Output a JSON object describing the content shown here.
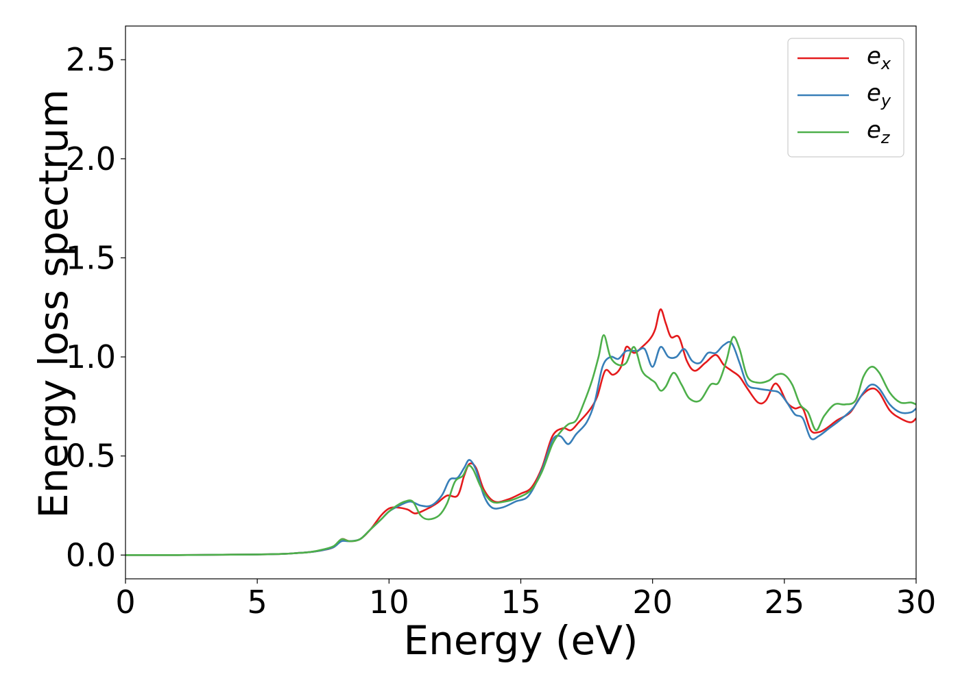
{
  "chart_data": {
    "type": "line",
    "title": "",
    "xlabel": "Energy (eV)",
    "ylabel": "Energy loss spectrum",
    "xlim": [
      0,
      30
    ],
    "ylim": [
      -0.12,
      2.67
    ],
    "xticks": [
      0,
      5,
      10,
      15,
      20,
      25,
      30
    ],
    "xtick_labels": [
      "0",
      "5",
      "10",
      "15",
      "20",
      "25",
      "30"
    ],
    "yticks": [
      0.0,
      0.5,
      1.0,
      1.5,
      2.0,
      2.5
    ],
    "ytick_labels": [
      "0.0",
      "0.5",
      "1.0",
      "1.5",
      "2.0",
      "2.5"
    ],
    "grid": false,
    "legend_position": "top-right",
    "series": [
      {
        "name": "e_x",
        "label_base": "e",
        "label_sub": "x",
        "color": "#e41a1c",
        "x": [
          0,
          2,
          4,
          5,
          6,
          6.5,
          7,
          7.5,
          7.9,
          8.2,
          8.5,
          8.9,
          9.3,
          9.7,
          10.0,
          10.3,
          10.7,
          11.0,
          11.4,
          11.8,
          12.2,
          12.6,
          12.85,
          13.05,
          13.3,
          13.6,
          14.0,
          14.5,
          15.0,
          15.4,
          15.8,
          16.2,
          16.6,
          16.9,
          17.2,
          17.6,
          17.9,
          18.2,
          18.5,
          18.8,
          19.0,
          19.3,
          19.6,
          19.9,
          20.1,
          20.3,
          20.5,
          20.7,
          21.0,
          21.3,
          21.6,
          22.0,
          22.4,
          22.7,
          23.0,
          23.3,
          23.6,
          24.0,
          24.3,
          24.6,
          24.8,
          25.1,
          25.4,
          25.7,
          26.0,
          26.3,
          26.6,
          27.0,
          27.5,
          27.9,
          28.3,
          28.6,
          29.0,
          29.4,
          29.8,
          30.0
        ],
        "y": [
          0.0,
          0.0,
          0.002,
          0.003,
          0.006,
          0.01,
          0.015,
          0.025,
          0.04,
          0.08,
          0.07,
          0.08,
          0.13,
          0.2,
          0.235,
          0.24,
          0.23,
          0.21,
          0.23,
          0.26,
          0.3,
          0.3,
          0.4,
          0.46,
          0.44,
          0.33,
          0.27,
          0.28,
          0.31,
          0.34,
          0.44,
          0.6,
          0.64,
          0.63,
          0.67,
          0.73,
          0.8,
          0.93,
          0.91,
          0.95,
          1.05,
          1.02,
          1.05,
          1.09,
          1.14,
          1.24,
          1.17,
          1.1,
          1.1,
          0.98,
          0.93,
          0.97,
          1.01,
          0.96,
          0.93,
          0.9,
          0.84,
          0.77,
          0.78,
          0.86,
          0.85,
          0.77,
          0.74,
          0.74,
          0.63,
          0.62,
          0.64,
          0.68,
          0.72,
          0.8,
          0.84,
          0.82,
          0.73,
          0.69,
          0.67,
          0.69
        ]
      },
      {
        "name": "e_y",
        "label_base": "e",
        "label_sub": "y",
        "color": "#377eb8",
        "x": [
          0,
          2,
          4,
          5,
          6,
          6.5,
          7,
          7.5,
          7.9,
          8.2,
          8.5,
          8.9,
          9.3,
          9.7,
          10.0,
          10.4,
          10.8,
          11.2,
          11.6,
          12.0,
          12.3,
          12.6,
          12.85,
          13.05,
          13.3,
          13.6,
          13.9,
          14.3,
          14.8,
          15.3,
          15.8,
          16.2,
          16.5,
          16.8,
          17.1,
          17.5,
          17.8,
          18.1,
          18.4,
          18.7,
          19.0,
          19.4,
          19.7,
          20.0,
          20.3,
          20.6,
          20.9,
          21.2,
          21.5,
          21.8,
          22.1,
          22.4,
          22.7,
          23.0,
          23.3,
          23.6,
          24.0,
          24.5,
          24.8,
          25.1,
          25.4,
          25.7,
          26.0,
          26.3,
          26.7,
          27.1,
          27.6,
          28.0,
          28.3,
          28.6,
          29.0,
          29.4,
          29.8,
          30.0
        ],
        "y": [
          0.0,
          0.0,
          0.002,
          0.003,
          0.006,
          0.01,
          0.015,
          0.025,
          0.04,
          0.07,
          0.07,
          0.08,
          0.13,
          0.18,
          0.22,
          0.25,
          0.27,
          0.25,
          0.25,
          0.3,
          0.38,
          0.39,
          0.44,
          0.48,
          0.43,
          0.3,
          0.24,
          0.24,
          0.27,
          0.3,
          0.43,
          0.58,
          0.6,
          0.56,
          0.61,
          0.67,
          0.77,
          0.95,
          1.0,
          0.99,
          1.03,
          1.03,
          1.04,
          0.95,
          1.05,
          1.0,
          1.0,
          1.04,
          0.98,
          0.97,
          1.02,
          1.02,
          1.06,
          1.07,
          0.97,
          0.86,
          0.84,
          0.83,
          0.82,
          0.77,
          0.71,
          0.69,
          0.59,
          0.6,
          0.64,
          0.68,
          0.74,
          0.82,
          0.86,
          0.84,
          0.76,
          0.72,
          0.72,
          0.74
        ]
      },
      {
        "name": "e_z",
        "label_base": "e",
        "label_sub": "z",
        "color": "#4daf4a",
        "x": [
          0,
          2,
          4,
          5,
          6,
          6.5,
          7,
          7.5,
          7.9,
          8.2,
          8.5,
          8.9,
          9.3,
          9.7,
          10.0,
          10.3,
          10.6,
          10.9,
          11.2,
          11.5,
          11.9,
          12.2,
          12.5,
          12.8,
          13.0,
          13.2,
          13.5,
          13.9,
          14.4,
          14.9,
          15.4,
          15.8,
          16.2,
          16.5,
          16.8,
          17.1,
          17.4,
          17.7,
          17.95,
          18.15,
          18.4,
          18.7,
          19.0,
          19.3,
          19.6,
          19.9,
          20.1,
          20.3,
          20.5,
          20.8,
          21.1,
          21.4,
          21.8,
          22.2,
          22.5,
          22.8,
          23.05,
          23.3,
          23.6,
          24.0,
          24.4,
          24.7,
          25.0,
          25.3,
          25.6,
          25.9,
          26.2,
          26.5,
          26.9,
          27.3,
          27.7,
          28.0,
          28.3,
          28.6,
          29.0,
          29.4,
          29.8,
          30.0
        ],
        "y": [
          0.0,
          0.0,
          0.002,
          0.003,
          0.006,
          0.01,
          0.015,
          0.028,
          0.045,
          0.08,
          0.07,
          0.08,
          0.13,
          0.18,
          0.22,
          0.25,
          0.27,
          0.27,
          0.2,
          0.18,
          0.2,
          0.26,
          0.37,
          0.4,
          0.45,
          0.43,
          0.34,
          0.27,
          0.27,
          0.29,
          0.33,
          0.42,
          0.56,
          0.62,
          0.66,
          0.68,
          0.77,
          0.88,
          1.0,
          1.11,
          1.0,
          0.96,
          0.97,
          1.05,
          0.93,
          0.89,
          0.87,
          0.83,
          0.85,
          0.92,
          0.86,
          0.79,
          0.78,
          0.86,
          0.87,
          0.98,
          1.1,
          1.04,
          0.9,
          0.87,
          0.88,
          0.91,
          0.91,
          0.86,
          0.76,
          0.72,
          0.63,
          0.7,
          0.76,
          0.76,
          0.78,
          0.9,
          0.95,
          0.92,
          0.82,
          0.77,
          0.77,
          0.76
        ]
      }
    ]
  }
}
